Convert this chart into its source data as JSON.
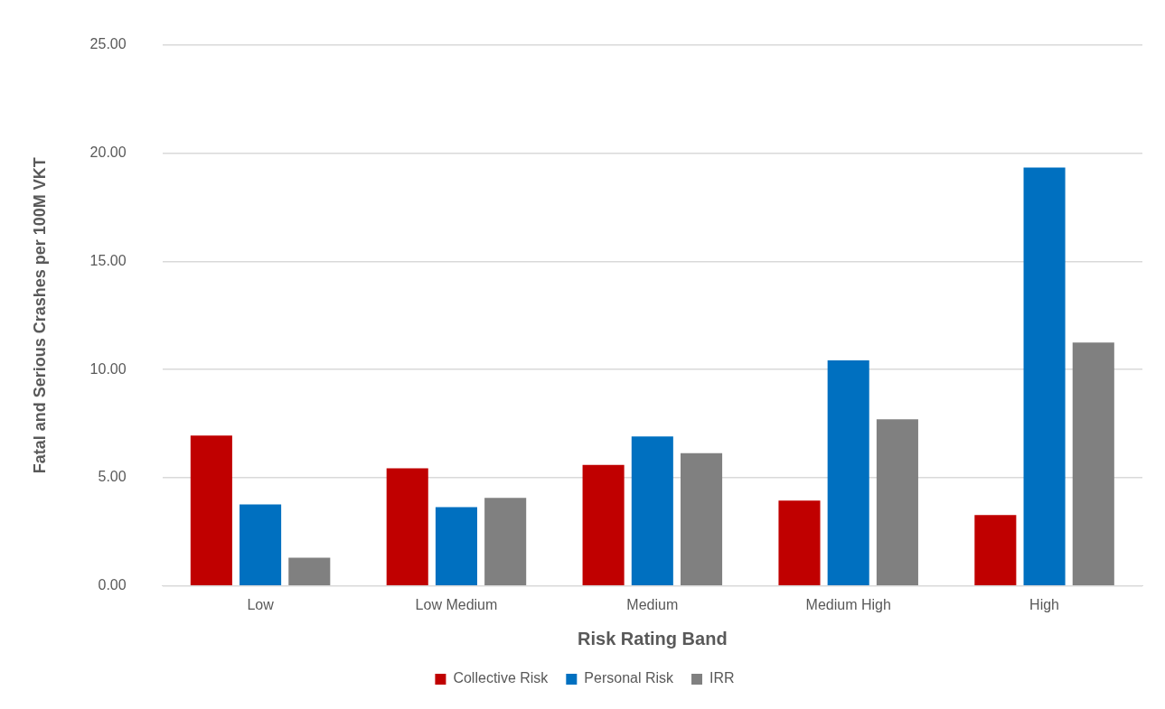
{
  "chart_data": {
    "type": "bar",
    "xlabel": "Risk Rating Band",
    "ylabel": "Fatal and Serious Crashes per 100M VKT",
    "categories": [
      "Low",
      "Low Medium",
      "Medium",
      "Medium High",
      "High"
    ],
    "series": [
      {
        "name": "Collective Risk",
        "color": "#c00000",
        "values": [
          6.95,
          5.44,
          5.59,
          3.95,
          3.28
        ]
      },
      {
        "name": "Personal Risk",
        "color": "#0070c0",
        "values": [
          3.77,
          3.64,
          6.91,
          10.42,
          19.33
        ]
      },
      {
        "name": "IRR",
        "color": "#808080",
        "values": [
          1.31,
          4.07,
          6.14,
          7.7,
          11.25
        ]
      }
    ],
    "ylim": [
      0,
      25
    ],
    "yticks": [
      {
        "value": 0,
        "label": "0.00"
      },
      {
        "value": 5,
        "label": "5.00"
      },
      {
        "value": 10,
        "label": "10.00"
      },
      {
        "value": 15,
        "label": "15.00"
      },
      {
        "value": 20,
        "label": "20.00"
      },
      {
        "value": 25,
        "label": "25.00"
      }
    ],
    "grid": "y",
    "legend": "bottom"
  }
}
